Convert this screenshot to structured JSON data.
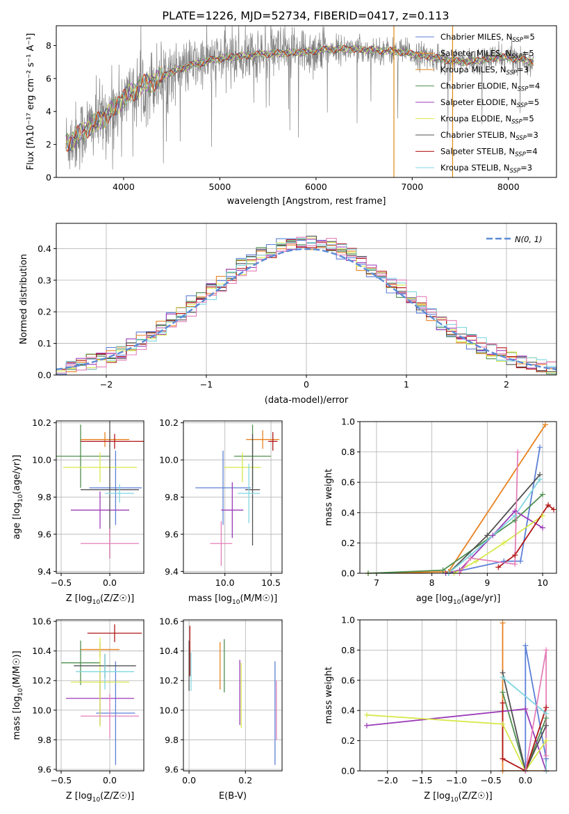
{
  "figure": {
    "title": "PLATE=1226, MJD=52734, FIBERID=0417, z=0.113"
  },
  "colors": {
    "chabrier_miles": "#5b7fd6",
    "salpeter_miles": "#e8811f",
    "kroupa_miles": "#e3860e",
    "chabrier_elodie": "#4f8f4f",
    "salpeter_elodie": "#9b3bb8",
    "kroupa_elodie": "#d8e84a",
    "chabrier_stelib": "#505050",
    "salpeter_stelib": "#b01515",
    "kroupa_stelib": "#7fd6e0",
    "pink": "#e57fb8",
    "data_grey": "#808080",
    "gauss_blue": "#5b8bd6"
  },
  "chart_data": [
    {
      "id": "spectrum",
      "type": "line",
      "xlabel": "wavelength [Angstrom, rest frame]",
      "ylabel": "Flux [fλ10⁻¹⁷ erg cm⁻² s⁻¹ A⁻¹]",
      "xlim": [
        3300,
        8500
      ],
      "ylim": [
        0,
        9.2
      ],
      "xticks": [
        4000,
        5000,
        6000,
        7000,
        8000
      ],
      "yticks": [
        0,
        2,
        4,
        6,
        8
      ],
      "legend_position": "upper right",
      "legend": [
        {
          "label": "Chabrier MILES, N",
          "sub": "SSP",
          "tail": "=5",
          "color": "#5b7fd6"
        },
        {
          "label": "Salpeter MILES, N",
          "sub": "SSP",
          "tail": "=5",
          "color": "#e8811f"
        },
        {
          "label": "Kroupa MILES, N",
          "sub": "SSP",
          "tail": "=3",
          "color": "#e3860e"
        },
        {
          "label": "Chabrier ELODIE, N",
          "sub": "SSP",
          "tail": "=4",
          "color": "#4f8f4f"
        },
        {
          "label": "Salpeter ELODIE, N",
          "sub": "SSP",
          "tail": "=5",
          "color": "#9b3bb8"
        },
        {
          "label": "Kroupa ELODIE, N",
          "sub": "SSP",
          "tail": "=5",
          "color": "#d8e84a"
        },
        {
          "label": "Chabrier STELIB, N",
          "sub": "SSP",
          "tail": "=3",
          "color": "#505050"
        },
        {
          "label": "Salpeter STELIB, N",
          "sub": "SSP",
          "tail": "=4",
          "color": "#b01515"
        },
        {
          "label": "Kroupa STELIB, N",
          "sub": "SSP",
          "tail": "=3",
          "color": "#7fd6e0"
        }
      ],
      "continuum": {
        "x": [
          3400,
          3500,
          3600,
          3700,
          3800,
          3900,
          4000,
          4100,
          4200,
          4300,
          4400,
          4500,
          4700,
          4900,
          5100,
          5300,
          5500,
          5700,
          5900,
          6100,
          6300,
          6500,
          6700,
          6900,
          7100,
          7300,
          7500,
          7700,
          7900,
          8100,
          8260
        ],
        "y": [
          2.1,
          2.4,
          2.9,
          3.3,
          3.6,
          4.2,
          4.8,
          5.2,
          5.6,
          5.8,
          6.1,
          6.4,
          6.8,
          7.1,
          7.3,
          7.4,
          7.5,
          7.55,
          7.6,
          7.75,
          7.8,
          7.75,
          7.7,
          7.6,
          7.4,
          7.2,
          7.0,
          7.1,
          7.3,
          7.2,
          7.0
        ]
      },
      "data_wavelength_range": [
        3400,
        8260
      ],
      "noise_sigma": 1.0,
      "spikes": [
        {
          "x": 6810,
          "y": 0,
          "color": "#e3860e"
        },
        {
          "x": 7420,
          "y": 0,
          "color": "#e3860e"
        }
      ]
    },
    {
      "id": "residuals",
      "type": "step-histogram",
      "xlabel": "(data-model)/error",
      "ylabel": "Normed distribution",
      "xlim": [
        -2.5,
        2.5
      ],
      "ylim": [
        0,
        0.48
      ],
      "xticks": [
        -2,
        -1,
        0,
        1,
        2
      ],
      "yticks": [
        0.0,
        0.1,
        0.2,
        0.3,
        0.4
      ],
      "legend_position": "upper right",
      "legend_label": "N(0, 1)",
      "bin_width": 0.1,
      "series_colors": [
        "#5b7fd6",
        "#e8811f",
        "#4f8f4f",
        "#9b3bb8",
        "#d8e84a",
        "#505050",
        "#b01515",
        "#7fd6e0",
        "#e57fb8"
      ]
    },
    {
      "id": "age-vs-z",
      "type": "errorbar",
      "xlabel": "Z [log10(Z/Z☉)]",
      "ylabel": "age  [log10(age/yr)]",
      "xlim": [
        -0.55,
        0.35
      ],
      "ylim": [
        9.39,
        10.21
      ],
      "xticks": [
        -0.5,
        0.0
      ],
      "yticks": [
        9.4,
        9.6,
        9.8,
        10.0,
        10.2
      ],
      "points": [
        {
          "x": 0.06,
          "y": 9.85,
          "xerr": 0.27,
          "yerr": 0.2,
          "color": "#5b7fd6"
        },
        {
          "x": -0.05,
          "y": 10.11,
          "xerr": 0.25,
          "yerr": 0.04,
          "color": "#e8811f"
        },
        {
          "x": -0.3,
          "y": 10.02,
          "xerr": 0.3,
          "yerr": 0.17,
          "color": "#4f8f4f"
        },
        {
          "x": -0.1,
          "y": 9.73,
          "xerr": 0.3,
          "yerr": 0.1,
          "color": "#9b3bb8"
        },
        {
          "x": -0.1,
          "y": 9.96,
          "xerr": 0.38,
          "yerr": 0.08,
          "color": "#d8e84a"
        },
        {
          "x": 0.0,
          "y": 9.84,
          "xerr": 0.3,
          "yerr": 0.37,
          "color": "#505050"
        },
        {
          "x": 0.05,
          "y": 10.1,
          "xerr": 0.35,
          "yerr": 0.04,
          "color": "#b01515"
        },
        {
          "x": 0.1,
          "y": 9.82,
          "xerr": 0.15,
          "yerr": 0.05,
          "color": "#7fd6e0"
        },
        {
          "x": 0.0,
          "y": 9.55,
          "xerr": 0.3,
          "yerr": 0.08,
          "color": "#e57fb8"
        }
      ]
    },
    {
      "id": "age-vs-mass",
      "type": "errorbar",
      "xlabel": "mass [log10(M/M☉)]",
      "ylabel": "",
      "xlim": [
        9.55,
        10.62
      ],
      "ylim": [
        9.39,
        10.21
      ],
      "xticks": [
        10.0,
        10.5
      ],
      "yticks": [
        9.4,
        9.6,
        9.8,
        10.0,
        10.2
      ],
      "points": [
        {
          "x": 9.98,
          "y": 9.85,
          "xerr": 0.3,
          "yerr": 0.2,
          "color": "#5b7fd6"
        },
        {
          "x": 10.41,
          "y": 10.11,
          "xerr": 0.18,
          "yerr": 0.05,
          "color": "#e8811f"
        },
        {
          "x": 10.3,
          "y": 10.02,
          "xerr": 0.2,
          "yerr": 0.17,
          "color": "#4f8f4f"
        },
        {
          "x": 10.08,
          "y": 9.73,
          "xerr": 0.12,
          "yerr": 0.15,
          "color": "#9b3bb8"
        },
        {
          "x": 10.19,
          "y": 9.96,
          "xerr": 0.2,
          "yerr": 0.08,
          "color": "#d8e84a"
        },
        {
          "x": 10.3,
          "y": 9.84,
          "xerr": 0.08,
          "yerr": 0.3,
          "color": "#505050"
        },
        {
          "x": 10.52,
          "y": 10.1,
          "xerr": 0.05,
          "yerr": 0.05,
          "color": "#b01515"
        },
        {
          "x": 10.26,
          "y": 9.82,
          "xerr": 0.12,
          "yerr": 0.16,
          "color": "#7fd6e0"
        },
        {
          "x": 9.96,
          "y": 9.55,
          "xerr": 0.12,
          "yerr": 0.12,
          "color": "#e57fb8"
        }
      ]
    },
    {
      "id": "weight-vs-age",
      "type": "line",
      "xlabel": "age  [log10(age/yr)]",
      "ylabel": "mass weight",
      "xlim": [
        6.7,
        10.25
      ],
      "ylim": [
        0,
        1
      ],
      "xticks": [
        7,
        8,
        9,
        10
      ],
      "yticks": [
        0.0,
        0.2,
        0.4,
        0.6,
        0.8,
        1.0
      ],
      "series": [
        {
          "color": "#5b7fd6",
          "x": [
            8.3,
            9.3,
            9.6,
            9.95
          ],
          "y": [
            0.0,
            0.08,
            0.08,
            0.83
          ]
        },
        {
          "color": "#e8811f",
          "x": [
            6.85,
            8.3,
            10.05
          ],
          "y": [
            0.0,
            0.01,
            0.98
          ]
        },
        {
          "color": "#4f8f4f",
          "x": [
            6.85,
            8.2,
            9.5,
            10.0
          ],
          "y": [
            0.0,
            0.02,
            0.35,
            0.52
          ]
        },
        {
          "color": "#9b3bb8",
          "x": [
            8.25,
            8.5,
            9.1,
            9.5,
            10.0
          ],
          "y": [
            0.0,
            0.02,
            0.25,
            0.41,
            0.3
          ]
        },
        {
          "color": "#d8e84a",
          "x": [
            8.4,
            8.8,
            9.3,
            10.0
          ],
          "y": [
            0.0,
            0.08,
            0.2,
            0.38
          ]
        },
        {
          "color": "#505050",
          "x": [
            8.3,
            9.0,
            9.95
          ],
          "y": [
            0.0,
            0.25,
            0.65
          ]
        },
        {
          "color": "#b01515",
          "x": [
            9.2,
            9.5,
            10.1,
            10.2
          ],
          "y": [
            0.04,
            0.12,
            0.45,
            0.42
          ]
        },
        {
          "color": "#7fd6e0",
          "x": [
            8.3,
            8.7,
            9.5,
            9.95
          ],
          "y": [
            0.0,
            0.12,
            0.38,
            0.62
          ]
        },
        {
          "color": "#e57fb8",
          "x": [
            8.5,
            8.7,
            9.5,
            9.55
          ],
          "y": [
            0.0,
            0.1,
            0.06,
            0.8
          ]
        }
      ]
    },
    {
      "id": "mass-vs-z",
      "type": "errorbar",
      "xlabel": "Z [log10(Z/Z☉)]",
      "ylabel": "mass [log10(M/M☉)]",
      "xlim": [
        -0.55,
        0.35
      ],
      "ylim": [
        9.59,
        10.61
      ],
      "xticks": [
        -0.5,
        0.0
      ],
      "yticks": [
        9.6,
        9.8,
        10.0,
        10.2,
        10.4,
        10.6
      ],
      "points": [
        {
          "x": 0.06,
          "y": 9.98,
          "xerr": 0.2,
          "yerr": 0.35,
          "color": "#5b7fd6"
        },
        {
          "x": -0.1,
          "y": 10.41,
          "xerr": 0.2,
          "yerr": 0.05,
          "color": "#e8811f"
        },
        {
          "x": -0.3,
          "y": 10.32,
          "xerr": 0.2,
          "yerr": 0.15,
          "color": "#4f8f4f"
        },
        {
          "x": -0.1,
          "y": 10.08,
          "xerr": 0.35,
          "yerr": 0.18,
          "color": "#9b3bb8"
        },
        {
          "x": -0.1,
          "y": 10.19,
          "xerr": 0.3,
          "yerr": 0.3,
          "color": "#d8e84a"
        },
        {
          "x": -0.05,
          "y": 10.3,
          "xerr": 0.32,
          "yerr": 0.08,
          "color": "#505050"
        },
        {
          "x": 0.05,
          "y": 10.52,
          "xerr": 0.28,
          "yerr": 0.06,
          "color": "#b01515"
        },
        {
          "x": -0.05,
          "y": 10.26,
          "xerr": 0.3,
          "yerr": 0.12,
          "color": "#7fd6e0"
        },
        {
          "x": 0.0,
          "y": 9.96,
          "xerr": 0.3,
          "yerr": 0.15,
          "color": "#e57fb8"
        }
      ]
    },
    {
      "id": "mass-vs-ebv",
      "type": "errorbar",
      "xlabel": "E(B-V)",
      "ylabel": "",
      "xlim": [
        -0.02,
        0.33
      ],
      "ylim": [
        9.59,
        10.61
      ],
      "xticks": [
        0.0,
        0.2
      ],
      "yticks": [
        9.6,
        9.8,
        10.0,
        10.2,
        10.4,
        10.6
      ],
      "points": [
        {
          "x": 0.305,
          "y": 9.98,
          "xerr": 0,
          "yerr": 0.35,
          "color": "#5b7fd6"
        },
        {
          "x": 0.11,
          "y": 10.3,
          "xerr": 0,
          "yerr": 0.16,
          "color": "#e8811f"
        },
        {
          "x": 0.125,
          "y": 10.3,
          "xerr": 0,
          "yerr": 0.18,
          "color": "#4f8f4f"
        },
        {
          "x": 0.18,
          "y": 10.12,
          "xerr": 0,
          "yerr": 0.22,
          "color": "#9b3bb8"
        },
        {
          "x": 0.185,
          "y": 10.1,
          "xerr": 0,
          "yerr": 0.22,
          "color": "#d8e84a"
        },
        {
          "x": 0.0,
          "y": 10.3,
          "xerr": 0,
          "yerr": 0.17,
          "color": "#505050"
        },
        {
          "x": 0.003,
          "y": 10.4,
          "xerr": 0,
          "yerr": 0.17,
          "color": "#b01515"
        },
        {
          "x": 0.007,
          "y": 10.26,
          "xerr": 0,
          "yerr": 0.13,
          "color": "#7fd6e0"
        },
        {
          "x": 0.31,
          "y": 10.0,
          "xerr": 0,
          "yerr": 0.2,
          "color": "#e57fb8"
        }
      ]
    },
    {
      "id": "weight-vs-z",
      "type": "line",
      "xlabel": "Z [log10(Z/Z☉)]",
      "ylabel": "mass weight",
      "xlim": [
        -2.4,
        0.45
      ],
      "ylim": [
        0,
        1
      ],
      "xticks": [
        -2.0,
        -1.5,
        -1.0,
        -0.5,
        0.0
      ],
      "yticks": [
        0.0,
        0.2,
        0.4,
        0.6,
        0.8,
        1.0
      ],
      "series": [
        {
          "color": "#5b7fd6",
          "x": [
            -0.33,
            0.0,
            0.0,
            0.3
          ],
          "y": [
            0.0,
            0.0,
            0.83,
            0.08
          ]
        },
        {
          "color": "#e8811f",
          "x": [
            -0.33,
            -0.33,
            0.3
          ],
          "y": [
            0.98,
            0.0,
            0.0
          ]
        },
        {
          "color": "#4f8f4f",
          "x": [
            -0.33,
            0.0,
            0.3
          ],
          "y": [
            0.52,
            0.0,
            0.35
          ]
        },
        {
          "color": "#9b3bb8",
          "x": [
            -2.3,
            0.0,
            0.3
          ],
          "y": [
            0.3,
            0.41,
            0.0
          ]
        },
        {
          "color": "#d8e84a",
          "x": [
            -2.3,
            -0.33,
            0.0,
            0.3
          ],
          "y": [
            0.37,
            0.31,
            0.0,
            0.2
          ]
        },
        {
          "color": "#505050",
          "x": [
            -0.33,
            0.0,
            0.3
          ],
          "y": [
            0.65,
            0.0,
            0.3
          ]
        },
        {
          "color": "#b01515",
          "x": [
            -0.33,
            -0.33,
            0.0,
            0.3,
            0.3
          ],
          "y": [
            0.45,
            0.08,
            0.0,
            0.42,
            0.0
          ]
        },
        {
          "color": "#7fd6e0",
          "x": [
            -0.33,
            0.3,
            0.3
          ],
          "y": [
            0.62,
            0.38,
            0.0
          ]
        },
        {
          "color": "#e57fb8",
          "x": [
            0.0,
            0.3,
            0.3
          ],
          "y": [
            0.0,
            0.8,
            0.1
          ]
        }
      ]
    }
  ]
}
